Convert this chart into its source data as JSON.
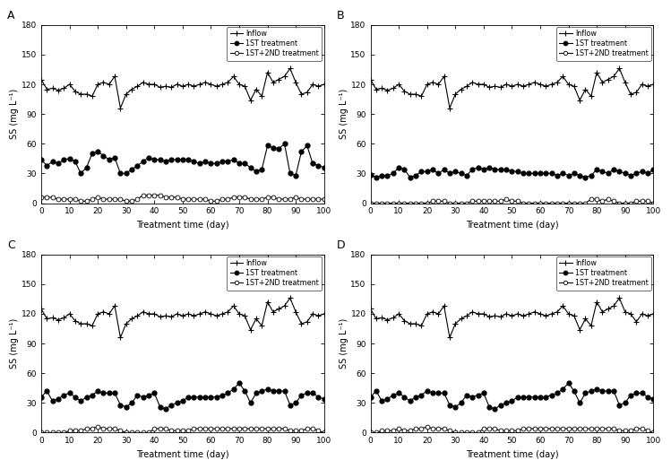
{
  "panels": [
    "A",
    "B",
    "C",
    "D"
  ],
  "x": [
    0,
    2,
    4,
    6,
    8,
    10,
    12,
    14,
    16,
    18,
    20,
    22,
    24,
    26,
    28,
    30,
    32,
    34,
    36,
    38,
    40,
    42,
    44,
    46,
    48,
    50,
    52,
    54,
    56,
    58,
    60,
    62,
    64,
    66,
    68,
    70,
    72,
    74,
    76,
    78,
    80,
    82,
    84,
    86,
    88,
    90,
    92,
    94,
    96,
    98,
    100
  ],
  "inflow": {
    "A": [
      125,
      115,
      116,
      114,
      116,
      120,
      113,
      110,
      110,
      108,
      120,
      122,
      120,
      128,
      96,
      110,
      115,
      118,
      122,
      120,
      120,
      117,
      118,
      117,
      120,
      118,
      120,
      118,
      120,
      122,
      120,
      118,
      120,
      122,
      128,
      120,
      118,
      104,
      115,
      108,
      132,
      122,
      125,
      128,
      136,
      122,
      110,
      112,
      120,
      118,
      120
    ],
    "B": [
      125,
      115,
      116,
      114,
      116,
      120,
      113,
      110,
      110,
      108,
      120,
      122,
      120,
      128,
      96,
      110,
      115,
      118,
      122,
      120,
      120,
      117,
      118,
      117,
      120,
      118,
      120,
      118,
      120,
      122,
      120,
      118,
      120,
      122,
      128,
      120,
      118,
      104,
      115,
      108,
      132,
      122,
      125,
      128,
      136,
      122,
      110,
      112,
      120,
      118,
      120
    ],
    "C": [
      125,
      115,
      116,
      114,
      116,
      120,
      113,
      110,
      110,
      108,
      120,
      122,
      120,
      128,
      96,
      110,
      115,
      118,
      122,
      120,
      120,
      117,
      118,
      117,
      120,
      118,
      120,
      118,
      120,
      122,
      120,
      118,
      120,
      122,
      128,
      120,
      118,
      104,
      115,
      108,
      132,
      122,
      125,
      128,
      136,
      122,
      110,
      112,
      120,
      118,
      120
    ],
    "D": [
      125,
      115,
      116,
      114,
      116,
      120,
      113,
      110,
      110,
      108,
      120,
      122,
      120,
      128,
      96,
      110,
      115,
      118,
      122,
      120,
      120,
      117,
      118,
      117,
      120,
      118,
      120,
      118,
      120,
      122,
      120,
      118,
      120,
      122,
      128,
      120,
      118,
      104,
      115,
      108,
      132,
      122,
      125,
      128,
      136,
      122,
      120,
      112,
      120,
      118,
      120
    ]
  },
  "first_treatment": {
    "A": [
      44,
      38,
      42,
      40,
      44,
      45,
      42,
      30,
      36,
      50,
      52,
      48,
      44,
      46,
      30,
      30,
      34,
      38,
      42,
      46,
      44,
      44,
      42,
      44,
      44,
      44,
      44,
      42,
      40,
      42,
      40,
      40,
      42,
      42,
      44,
      40,
      40,
      36,
      32,
      34,
      58,
      56,
      55,
      60,
      30,
      28,
      52,
      58,
      40,
      38,
      36
    ],
    "B": [
      29,
      26,
      28,
      28,
      30,
      36,
      34,
      26,
      28,
      32,
      32,
      34,
      30,
      34,
      30,
      32,
      30,
      28,
      34,
      36,
      34,
      36,
      34,
      34,
      34,
      32,
      32,
      30,
      30,
      30,
      30,
      30,
      30,
      28,
      30,
      28,
      30,
      28,
      26,
      28,
      34,
      32,
      30,
      34,
      32,
      30,
      28,
      30,
      32,
      30,
      34
    ],
    "C": [
      36,
      42,
      32,
      34,
      38,
      40,
      36,
      32,
      36,
      38,
      42,
      40,
      40,
      40,
      28,
      26,
      30,
      38,
      36,
      38,
      40,
      26,
      24,
      28,
      30,
      32,
      36,
      36,
      36,
      36,
      36,
      36,
      38,
      40,
      44,
      50,
      42,
      30,
      40,
      42,
      44,
      42,
      42,
      42,
      28,
      30,
      38,
      40,
      40,
      36,
      34
    ],
    "D": [
      36,
      42,
      32,
      34,
      38,
      40,
      36,
      32,
      36,
      38,
      42,
      40,
      40,
      40,
      28,
      26,
      30,
      38,
      36,
      38,
      40,
      26,
      24,
      28,
      30,
      32,
      36,
      36,
      36,
      36,
      36,
      36,
      38,
      40,
      44,
      50,
      42,
      30,
      40,
      42,
      44,
      42,
      42,
      42,
      28,
      30,
      38,
      40,
      40,
      36,
      34
    ]
  },
  "second_treatment": {
    "A": [
      6,
      6,
      6,
      4,
      4,
      4,
      4,
      2,
      2,
      4,
      6,
      4,
      4,
      4,
      4,
      2,
      2,
      4,
      8,
      8,
      8,
      8,
      6,
      6,
      6,
      4,
      4,
      4,
      4,
      4,
      2,
      2,
      4,
      4,
      6,
      6,
      6,
      4,
      4,
      4,
      6,
      6,
      4,
      4,
      4,
      6,
      4,
      4,
      4,
      4,
      4
    ],
    "B": [
      0,
      0,
      0,
      0,
      0,
      0,
      0,
      0,
      0,
      0,
      0,
      2,
      2,
      2,
      0,
      0,
      0,
      0,
      2,
      2,
      2,
      2,
      2,
      2,
      4,
      2,
      2,
      0,
      0,
      0,
      0,
      0,
      0,
      0,
      0,
      0,
      0,
      0,
      0,
      4,
      4,
      2,
      4,
      2,
      0,
      0,
      0,
      2,
      2,
      2,
      0
    ],
    "C": [
      0,
      0,
      0,
      0,
      0,
      2,
      2,
      2,
      4,
      4,
      6,
      4,
      4,
      4,
      2,
      0,
      0,
      0,
      0,
      0,
      4,
      4,
      4,
      2,
      2,
      2,
      2,
      4,
      4,
      4,
      4,
      4,
      4,
      4,
      4,
      4,
      4,
      4,
      4,
      4,
      4,
      4,
      4,
      4,
      2,
      2,
      2,
      4,
      4,
      2,
      0
    ],
    "D": [
      0,
      0,
      2,
      2,
      2,
      4,
      2,
      2,
      4,
      4,
      6,
      4,
      4,
      4,
      2,
      0,
      0,
      0,
      0,
      0,
      4,
      4,
      4,
      2,
      2,
      2,
      2,
      4,
      4,
      4,
      4,
      4,
      4,
      4,
      4,
      4,
      4,
      4,
      4,
      4,
      4,
      4,
      4,
      4,
      2,
      2,
      2,
      4,
      4,
      2,
      0
    ]
  },
  "xlabel": "Treatment time (day)",
  "ylabel": "SS (mg L⁻¹)",
  "ylim": [
    0,
    180
  ],
  "yticks": [
    0,
    30,
    60,
    90,
    120,
    150,
    180
  ],
  "xticks": [
    0,
    10,
    20,
    30,
    40,
    50,
    60,
    70,
    80,
    90,
    100
  ],
  "legend_labels": [
    "Inflow",
    "1ST treatment",
    "1ST+2ND treatment"
  ],
  "marker_inflow": "D",
  "marker_first": "o",
  "marker_second": "o",
  "line_color": "#000000",
  "markersize_inflow": 3.0,
  "markersize_first": 3.5,
  "markersize_second": 3.5,
  "linewidth": 0.8
}
